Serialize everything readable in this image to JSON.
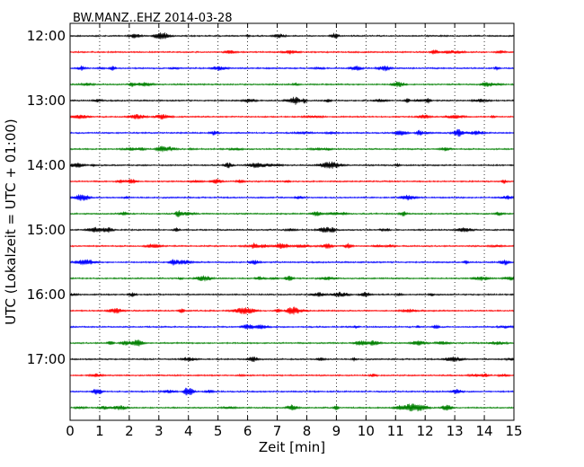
{
  "chart_data": {
    "type": "line",
    "title": "BW.MANZ..EHZ 2014-03-28",
    "xlabel": "Zeit  [min]",
    "ylabel": "UTC (Lokalzeit = UTC + 01:00)",
    "xlim": [
      0,
      15
    ],
    "x_ticks": [
      "0",
      "1",
      "2",
      "3",
      "4",
      "5",
      "6",
      "7",
      "8",
      "9",
      "10",
      "11",
      "12",
      "13",
      "14",
      "15"
    ],
    "y_tick_labels": [
      "12:00",
      "13:00",
      "14:00",
      "15:00",
      "16:00",
      "17:00"
    ],
    "grid": true,
    "traces_per_hour": 4,
    "trace_interval_minutes": 15,
    "trace_colors": [
      "#000000",
      "#ff0000",
      "#0000ff",
      "#008000"
    ],
    "trace_start_times": [
      "12:00",
      "12:15",
      "12:30",
      "12:45",
      "13:00",
      "13:15",
      "13:30",
      "13:45",
      "14:00",
      "14:15",
      "14:30",
      "14:45",
      "15:00",
      "15:15",
      "15:30",
      "15:45",
      "16:00",
      "16:15",
      "16:30",
      "16:45",
      "17:00",
      "17:15",
      "17:30",
      "17:45"
    ],
    "events": [
      {
        "trace": "15:15",
        "start_min": 5.7,
        "end_min": 8.6,
        "amplitude": "high"
      }
    ]
  }
}
